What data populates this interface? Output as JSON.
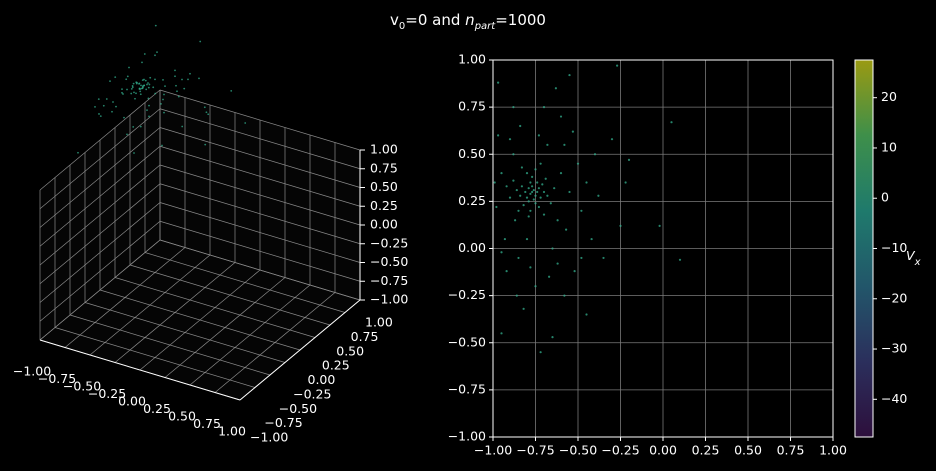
{
  "title": [
    "v",
    "0",
    "=0 and ",
    "n",
    "part",
    "=1000"
  ],
  "chart_data": [
    {
      "type": "scatter3d",
      "xlim": [
        -1,
        1
      ],
      "ylim": [
        -1,
        1
      ],
      "zlim": [
        -1,
        1
      ],
      "xticks": [
        {
          "value": -1,
          "label": "−1.00"
        },
        {
          "value": -0.75,
          "label": "−0.75"
        },
        {
          "value": -0.5,
          "label": "−0.50"
        },
        {
          "value": -0.25,
          "label": "−0.25"
        },
        {
          "value": 0,
          "label": "0.00"
        },
        {
          "value": 0.25,
          "label": "0.25"
        },
        {
          "value": 0.5,
          "label": "0.50"
        },
        {
          "value": 0.75,
          "label": "0.75"
        },
        {
          "value": 1,
          "label": "1.00"
        }
      ],
      "yticks": [
        {
          "value": -1,
          "label": "−1.00"
        },
        {
          "value": -0.75,
          "label": "−0.75"
        },
        {
          "value": -0.5,
          "label": "−0.50"
        },
        {
          "value": -0.25,
          "label": "−0.25"
        },
        {
          "value": 0,
          "label": "0.00"
        },
        {
          "value": 0.25,
          "label": "0.25"
        },
        {
          "value": 0.5,
          "label": "0.50"
        },
        {
          "value": 0.75,
          "label": "0.75"
        },
        {
          "value": 1,
          "label": "1.00"
        }
      ],
      "zticks": [
        {
          "value": -1,
          "label": "−1.00"
        },
        {
          "value": -0.75,
          "label": "−0.75"
        },
        {
          "value": -0.5,
          "label": "−0.50"
        },
        {
          "value": -0.25,
          "label": "−0.25"
        },
        {
          "value": 0,
          "label": "0.00"
        },
        {
          "value": 0.25,
          "label": "0.25"
        },
        {
          "value": 0.5,
          "label": "0.50"
        },
        {
          "value": 0.75,
          "label": "0.75"
        },
        {
          "value": 1,
          "label": "1.00"
        }
      ],
      "color": "#33b08f",
      "grid": true,
      "z": [
        1.62,
        1.58,
        1.65,
        1.6,
        1.55,
        1.63,
        1.67,
        1.59,
        1.61,
        1.57,
        1.64,
        1.56,
        1.66,
        1.6,
        1.62,
        1.54,
        1.68,
        1.58,
        1.63,
        1.61,
        1.6,
        1.63,
        1.57,
        1.61,
        1.59,
        1.64,
        1.56,
        1.62,
        1.58,
        1.65,
        1.6,
        1.53,
        1.67,
        1.59,
        1.62,
        1.55,
        1.66,
        1.58,
        1.61,
        1.63,
        1.5,
        1.72,
        1.45,
        1.7,
        1.52,
        1.75,
        1.48,
        1.66,
        1.42,
        1.78,
        1.55,
        1.4,
        1.69,
        1.47,
        1.73,
        1.51,
        1.8,
        1.44,
        1.6,
        1.38,
        1.49,
        1.71,
        1.46,
        1.76,
        1.53,
        1.43,
        1.68,
        1.74,
        1.41,
        1.57,
        1.79,
        1.5,
        1.36,
        1.7,
        1.47,
        1.83,
        1.45,
        1.64,
        1.39,
        1.72,
        1.95,
        1.3,
        1.2,
        1.85,
        1.25,
        1.35,
        1.9,
        1.15,
        2.0,
        1.28,
        1.88,
        1.33,
        1.22,
        1.92,
        1.4
      ]
    },
    {
      "type": "scatter",
      "xlim": [
        -1,
        1
      ],
      "ylim": [
        -1,
        1
      ],
      "xticks": [
        {
          "value": -1,
          "label": "−1.00"
        },
        {
          "value": -0.75,
          "label": "−0.75"
        },
        {
          "value": -0.5,
          "label": "−0.50"
        },
        {
          "value": -0.25,
          "label": "−0.25"
        },
        {
          "value": 0,
          "label": "0.00"
        },
        {
          "value": 0.25,
          "label": "0.25"
        },
        {
          "value": 0.5,
          "label": "0.50"
        },
        {
          "value": 0.75,
          "label": "0.75"
        },
        {
          "value": 1,
          "label": "1.00"
        }
      ],
      "yticks": [
        {
          "value": -1,
          "label": "−1.00"
        },
        {
          "value": -0.75,
          "label": "−0.75"
        },
        {
          "value": -0.5,
          "label": "−0.50"
        },
        {
          "value": -0.25,
          "label": "−0.25"
        },
        {
          "value": 0,
          "label": "0.00"
        },
        {
          "value": 0.25,
          "label": "0.25"
        },
        {
          "value": 0.5,
          "label": "0.50"
        },
        {
          "value": 0.75,
          "label": "0.75"
        },
        {
          "value": 1,
          "label": "1.00"
        }
      ],
      "grid": true,
      "color": "#33b08f",
      "x": [
        -0.77,
        -0.76,
        -0.78,
        -0.75,
        -0.79,
        -0.74,
        -0.8,
        -0.77,
        -0.76,
        -0.73,
        -0.81,
        -0.78,
        -0.72,
        -0.83,
        -0.75,
        -0.79,
        -0.7,
        -0.84,
        -0.77,
        -0.74,
        -0.82,
        -0.71,
        -0.86,
        -0.73,
        -0.78,
        -0.68,
        -0.88,
        -0.8,
        -0.69,
        -0.75,
        -0.85,
        -0.66,
        -0.9,
        -0.79,
        -0.72,
        -0.64,
        -0.92,
        -0.83,
        -0.7,
        -0.87,
        -0.6,
        -0.95,
        -0.62,
        -0.98,
        -0.55,
        -0.88,
        -0.68,
        -0.8,
        -0.57,
        -0.93,
        -0.5,
        -0.99,
        -0.65,
        -0.85,
        -0.58,
        -0.73,
        -0.9,
        -0.48,
        -0.78,
        -0.62,
        -0.95,
        -0.45,
        -0.53,
        -0.84,
        -0.67,
        -0.92,
        -0.42,
        -0.75,
        -0.58,
        -0.86,
        -0.4,
        -0.6,
        -0.97,
        -0.48,
        -0.7,
        -0.82,
        -0.52,
        -0.38,
        -0.63,
        -0.88,
        -0.97,
        -0.27,
        0.05,
        0.1,
        -0.02,
        -0.2,
        -0.22,
        -0.95,
        -0.65,
        -0.45,
        -0.55,
        -0.3,
        -0.35,
        -0.72,
        -0.25
      ],
      "y": [
        0.3,
        0.31,
        0.29,
        0.28,
        0.32,
        0.3,
        0.27,
        0.33,
        0.26,
        0.32,
        0.3,
        0.35,
        0.27,
        0.33,
        0.24,
        0.25,
        0.3,
        0.28,
        0.38,
        0.35,
        0.23,
        0.34,
        0.31,
        0.22,
        0.2,
        0.28,
        0.36,
        0.4,
        0.37,
        0.42,
        0.2,
        0.24,
        0.27,
        0.17,
        0.45,
        0.32,
        0.33,
        0.43,
        0.18,
        0.15,
        0.4,
        0.4,
        0.15,
        0.22,
        0.3,
        0.5,
        0.55,
        0.05,
        0.1,
        0.05,
        0.45,
        0.35,
        0.0,
        -0.05,
        0.55,
        0.6,
        0.58,
        0.2,
        -0.1,
        -0.08,
        -0.02,
        0.35,
        0.62,
        0.65,
        -0.15,
        -0.12,
        0.05,
        -0.2,
        -0.25,
        -0.25,
        0.5,
        0.7,
        0.6,
        -0.05,
        0.75,
        -0.32,
        -0.12,
        0.28,
        0.85,
        0.75,
        0.88,
        0.97,
        0.67,
        -0.06,
        0.12,
        0.47,
        0.35,
        -0.45,
        -0.47,
        -0.35,
        0.92,
        0.58,
        -0.05,
        -0.55,
        0.12
      ],
      "colorbar": {
        "lim": [
          -47.5,
          27.5
        ],
        "ticks": [
          {
            "value": -40,
            "label": "−40"
          },
          {
            "value": -30,
            "label": "−30"
          },
          {
            "value": -20,
            "label": "−20"
          },
          {
            "value": -10,
            "label": "−10"
          },
          0,
          10,
          20
        ],
        "label": [
          "V",
          "x"
        ],
        "colors": [
          "#2d0f3c",
          "#2b2f5c",
          "#22566a",
          "#1f7a6c",
          "#3e8f4a",
          "#9a9a12"
        ]
      }
    }
  ]
}
